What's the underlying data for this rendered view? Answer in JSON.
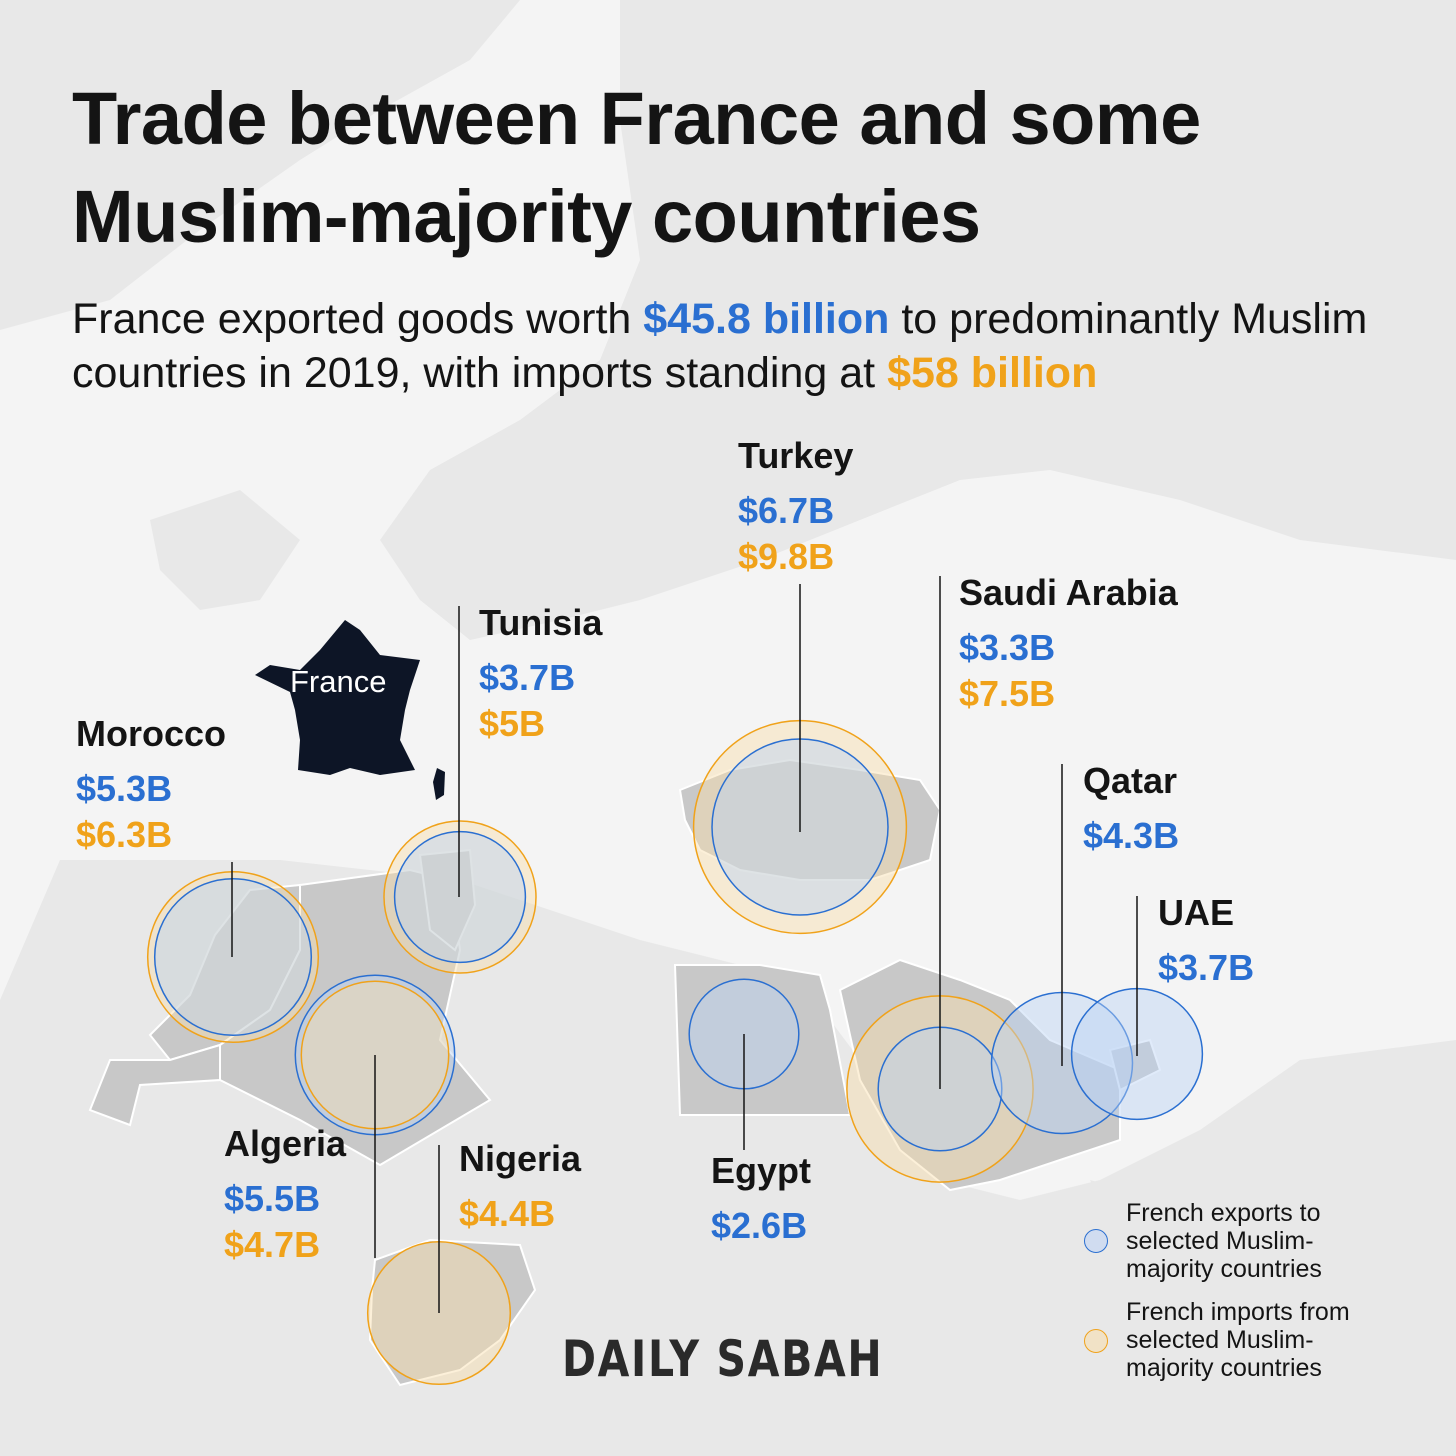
{
  "title": "Trade between France and some Muslim-majority countries",
  "subtitle": {
    "part1": "France exported goods worth ",
    "exports_total": "$45.8 billion",
    "part2": " to predominantly Muslim countries in 2019, with imports standing at ",
    "imports_total": "$58 billion"
  },
  "france_label": "France",
  "colors": {
    "exports": "#2a6fd1",
    "imports": "#f0a21a",
    "france": "#0d1526",
    "land": "#c8c8c8",
    "background": "#f4f4f4"
  },
  "countries": [
    {
      "id": "morocco",
      "name": "Morocco",
      "exports": "$5.3B",
      "imports": "$6.3B"
    },
    {
      "id": "tunisia",
      "name": "Tunisia",
      "exports": "$3.7B",
      "imports": "$5B"
    },
    {
      "id": "turkey",
      "name": "Turkey",
      "exports": "$6.7B",
      "imports": "$9.8B"
    },
    {
      "id": "saudi-arabia",
      "name": "Saudi Arabia",
      "exports": "$3.3B",
      "imports": "$7.5B"
    },
    {
      "id": "qatar",
      "name": "Qatar",
      "exports": "$4.3B"
    },
    {
      "id": "uae",
      "name": "UAE",
      "exports": "$3.7B"
    },
    {
      "id": "algeria",
      "name": "Algeria",
      "exports": "$5.5B",
      "imports": "$4.7B"
    },
    {
      "id": "nigeria",
      "name": "Nigeria",
      "imports": "$4.4B"
    },
    {
      "id": "egypt",
      "name": "Egypt",
      "exports": "$2.6B"
    }
  ],
  "legend": {
    "exports": "French exports to selected Muslim-majority countries",
    "imports": "French imports from selected Muslim-majority countries"
  },
  "logo": "DAILY SABAH"
}
